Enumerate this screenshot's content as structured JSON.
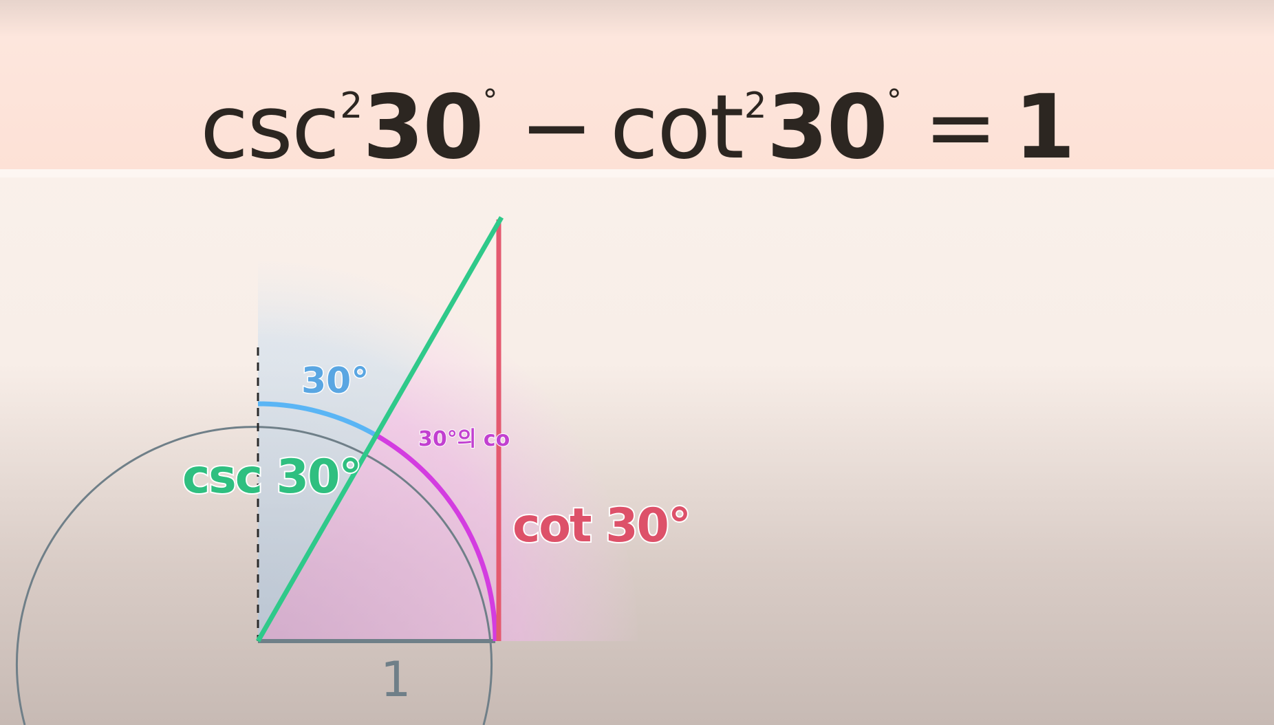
{
  "equation": {
    "csc": "csc",
    "exp1": "2",
    "angle1": "30",
    "deg1": "°",
    "minus": "−",
    "cot": "cot",
    "exp2": "2",
    "angle2": "30",
    "deg2": "°",
    "equals": "=",
    "rhs": "1"
  },
  "labels": {
    "angle_30": "30°",
    "co_angle": "30°의 co",
    "csc_label": "csc 30°",
    "cot_label": "cot 30°",
    "unit": "1"
  },
  "colors": {
    "csc_line": "#2fc98a",
    "cot_line": "#e45a70",
    "angle_arc": "#5ab5f5",
    "co_arc": "#d33de0",
    "circle": "#6f7f88",
    "base": "#6f7f88",
    "title_text": "#2c2621",
    "banner": "#fde1d6"
  }
}
